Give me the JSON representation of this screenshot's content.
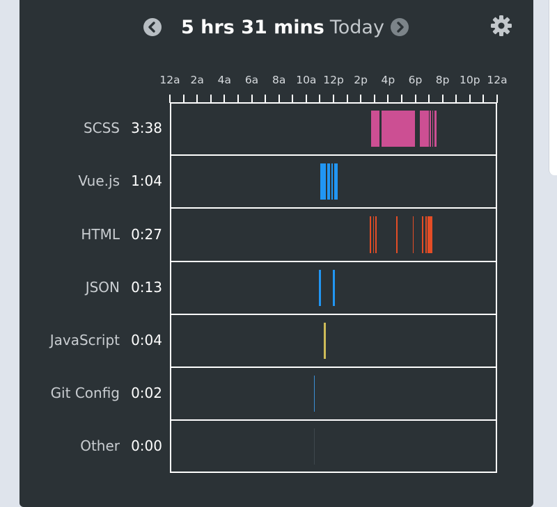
{
  "header": {
    "total": "5 hrs 31 mins",
    "period": "Today",
    "prev_icon": "chevron-left-circle-icon",
    "next_icon": "chevron-right-circle-icon",
    "settings_icon": "gear-icon"
  },
  "colors": {
    "card_bg": "#2b3236",
    "page_bg": "#dfe4ec",
    "grid": "#ffffff",
    "scss": "#cc4f93",
    "vue": "#2196f3",
    "html": "#e44d26",
    "json": "#2196f3",
    "javascript": "#cdbb58",
    "git_config": "#3b8fd6",
    "other": "#3e474c"
  },
  "chart_data": {
    "type": "timeline",
    "x_ticks": [
      "12a",
      "2a",
      "4a",
      "6a",
      "8a",
      "10a",
      "12p",
      "2p",
      "4p",
      "6p",
      "8p",
      "10p",
      "12a"
    ],
    "x_range_hours": [
      0,
      24
    ],
    "rows": [
      {
        "label": "SCSS",
        "time": "3:38",
        "color": "#cc4f93",
        "segments": [
          [
            14.75,
            15.35
          ],
          [
            15.5,
            16.2
          ],
          [
            16.2,
            16.25
          ],
          [
            16.25,
            16.85
          ],
          [
            16.85,
            17.95
          ],
          [
            18.35,
            19.0
          ],
          [
            19.05,
            19.15
          ],
          [
            19.25,
            19.3
          ],
          [
            19.4,
            19.55
          ]
        ]
      },
      {
        "label": "Vue.js",
        "time": "1:04",
        "color": "#2196f3",
        "segments": [
          [
            11.05,
            11.45
          ],
          [
            11.55,
            11.75
          ],
          [
            11.85,
            11.95
          ],
          [
            12.05,
            12.3
          ]
        ]
      },
      {
        "label": "HTML",
        "time": "0:27",
        "color": "#e44d26",
        "segments": [
          [
            14.65,
            14.75
          ],
          [
            14.9,
            14.98
          ],
          [
            15.08,
            15.13
          ],
          [
            16.6,
            16.65
          ],
          [
            17.8,
            17.84
          ],
          [
            18.5,
            18.55
          ],
          [
            18.75,
            18.8
          ],
          [
            18.9,
            19.25
          ]
        ]
      },
      {
        "label": "JSON",
        "time": "0:13",
        "color": "#2196f3",
        "segments": [
          [
            10.95,
            11.1
          ],
          [
            11.95,
            12.1
          ]
        ]
      },
      {
        "label": "JavaScript",
        "time": "0:04",
        "color": "#cdbb58",
        "segments": [
          [
            11.3,
            11.45
          ]
        ]
      },
      {
        "label": "Git Config",
        "time": "0:02",
        "color": "#3b8fd6",
        "segments": [
          [
            10.55,
            10.62
          ]
        ]
      },
      {
        "label": "Other",
        "time": "0:00",
        "color": "#3e474c",
        "segments": [
          [
            10.55,
            10.58
          ]
        ]
      }
    ]
  }
}
